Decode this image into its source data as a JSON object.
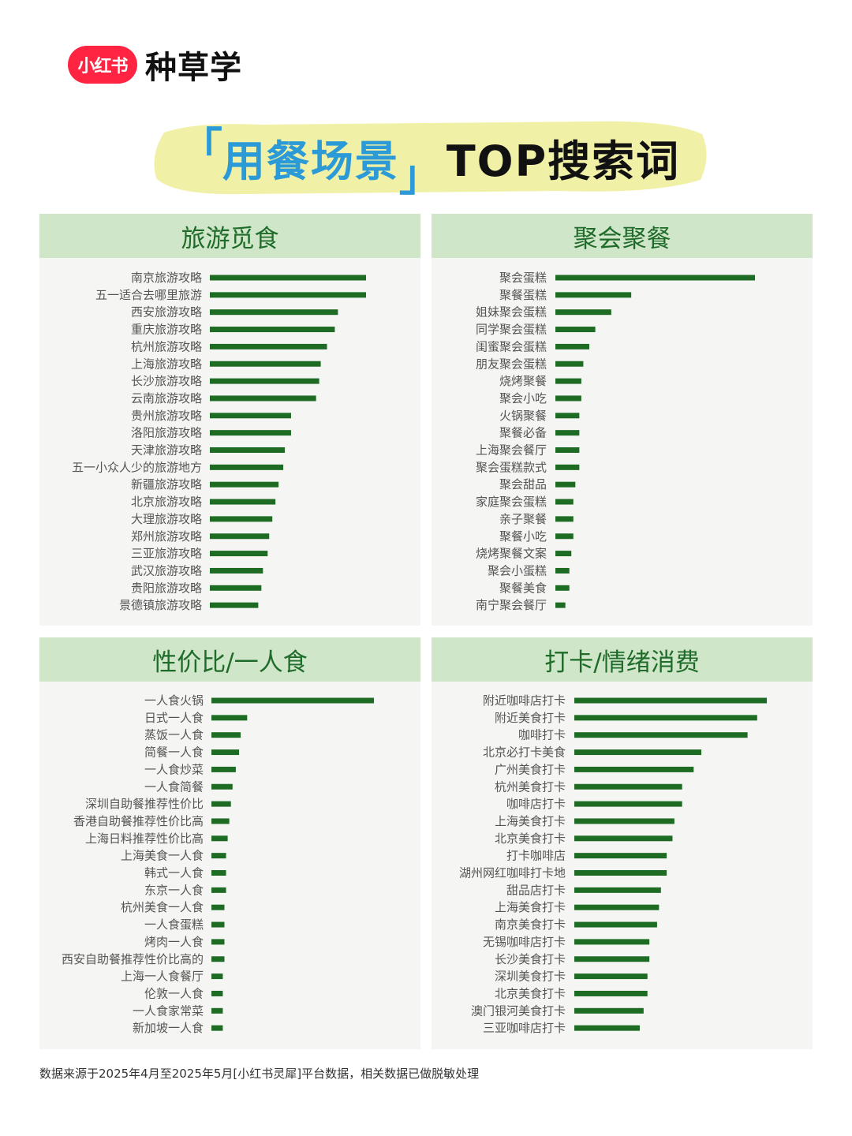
{
  "brand": {
    "logo_text": "小红书",
    "name": "种草学",
    "logo_color": "#ff2442"
  },
  "headline": {
    "open_bracket": "「",
    "keyword": "用餐场景",
    "close_bracket": "」",
    "rest": "TOP搜索词"
  },
  "colors": {
    "bar": "#1e6b23",
    "header_bg": "#cfe6c9",
    "panel_bg": "#f5f5f4",
    "title_text": "#1f6b2a",
    "highlight": "#f0f1a6",
    "keyword": "#2b9ad6"
  },
  "chart_data": [
    {
      "type": "bar",
      "title": "旅游觅食",
      "categories": [
        "南京旅游攻略",
        "五一适合去哪里旅游",
        "西安旅游攻略",
        "重庆旅游攻略",
        "杭州旅游攻略",
        "上海旅游攻略",
        "长沙旅游攻略",
        "云南旅游攻略",
        "贵州旅游攻略",
        "洛阳旅游攻略",
        "天津旅游攻略",
        "五一小众人少的旅游地方",
        "新疆旅游攻略",
        "北京旅游攻略",
        "大理旅游攻略",
        "郑州旅游攻略",
        "三亚旅游攻略",
        "武汉旅游攻略",
        "贵阳旅游攻略",
        "景德镇旅游攻略"
      ],
      "values": [
        100,
        100,
        82,
        80,
        75,
        71,
        70,
        68,
        52,
        52,
        48,
        47,
        44,
        42,
        40,
        38,
        37,
        34,
        33,
        31
      ]
    },
    {
      "type": "bar",
      "title": "聚会聚餐",
      "categories": [
        "聚会蛋糕",
        "聚餐蛋糕",
        "姐妹聚会蛋糕",
        "同学聚会蛋糕",
        "闺蜜聚会蛋糕",
        "朋友聚会蛋糕",
        "烧烤聚餐",
        "聚会小吃",
        "火锅聚餐",
        "聚餐必备",
        "上海聚会餐厅",
        "聚会蛋糕款式",
        "聚会甜品",
        "家庭聚会蛋糕",
        "亲子聚餐",
        "聚餐小吃",
        "烧烤聚餐文案",
        "聚会小蛋糕",
        "聚餐美食",
        "南宁聚会餐厅"
      ],
      "values": [
        100,
        38,
        28,
        20,
        17,
        14,
        13,
        13,
        12,
        12,
        12,
        12,
        10,
        9,
        9,
        9,
        8,
        7,
        7,
        5
      ]
    },
    {
      "type": "bar",
      "title": "性价比/一人食",
      "categories": [
        "一人食火锅",
        "日式一人食",
        "蒸饭一人食",
        "简餐一人食",
        "一人食炒菜",
        "一人食简餐",
        "深圳自助餐推荐性价比",
        "香港自助餐推荐性价比高",
        "上海日料推荐性价比高",
        "上海美食一人食",
        "韩式一人食",
        "东京一人食",
        "杭州美食一人食",
        "一人食蛋糕",
        "烤肉一人食",
        "西安自助餐推荐性价比高的",
        "上海一人食餐厅",
        "伦敦一人食",
        "一人食家常菜",
        "新加坡一人食"
      ],
      "values": [
        100,
        22,
        18,
        17,
        15,
        13,
        12,
        11,
        10,
        9,
        9,
        9,
        8,
        8,
        8,
        8,
        7,
        7,
        7,
        7
      ]
    },
    {
      "type": "bar",
      "title": "打卡/情绪消费",
      "categories": [
        "附近咖啡店打卡",
        "附近美食打卡",
        "咖啡打卡",
        "北京必打卡美食",
        "广州美食打卡",
        "杭州美食打卡",
        "咖啡店打卡",
        "上海美食打卡",
        "北京美食打卡",
        "打卡咖啡店",
        "湖州网红咖啡打卡地",
        "甜品店打卡",
        "上海美食打卡",
        "南京美食打卡",
        "无锡咖啡店打卡",
        "长沙美食打卡",
        "深圳美食打卡",
        "北京美食打卡",
        "澳门银河美食打卡",
        "三亚咖啡店打卡"
      ],
      "values": [
        100,
        95,
        90,
        66,
        62,
        56,
        56,
        52,
        51,
        48,
        48,
        45,
        44,
        43,
        39,
        39,
        38,
        38,
        36,
        34
      ]
    }
  ],
  "footnote": "数据来源于2025年4月至2025年5月[小红书灵犀]平台数据，相关数据已做脱敏处理"
}
